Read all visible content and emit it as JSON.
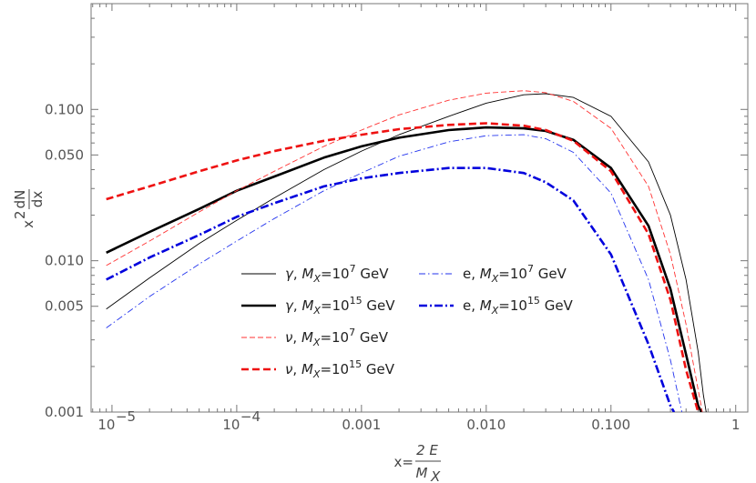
{
  "chart_data": {
    "type": "line",
    "xscale": "log",
    "yscale": "log",
    "xlim": [
      6.8e-06,
      1.25
    ],
    "ylim": [
      0.001,
      0.5
    ],
    "grid": false,
    "legend_position": "center",
    "xlabel": {
      "lhs": "x=",
      "num": "2 E",
      "den": "M",
      "den_sub": "X"
    },
    "ylabel": {
      "base": "x",
      "exp": "2",
      "num": "dN",
      "den": "dx"
    },
    "x_ticks": [
      {
        "value": 1e-05,
        "mant": "10",
        "exp": "−5"
      },
      {
        "value": 0.0001,
        "mant": "10",
        "exp": "−4"
      },
      {
        "value": 0.001,
        "text": "0.001"
      },
      {
        "value": 0.01,
        "text": "0.010"
      },
      {
        "value": 0.1,
        "text": "0.100"
      },
      {
        "value": 1,
        "text": "1"
      }
    ],
    "y_ticks": [
      {
        "value": 0.001,
        "text": "0.001"
      },
      {
        "value": 0.005,
        "text": "0.005"
      },
      {
        "value": 0.01,
        "text": "0.010"
      },
      {
        "value": 0.05,
        "text": "0.050"
      },
      {
        "value": 0.1,
        "text": "0.100"
      }
    ],
    "series": [
      {
        "name": "γ, M_X=10^7 GeV",
        "particle": "γ",
        "mass_exp": "7",
        "color": "#000000",
        "style": "solid",
        "weight": "thin",
        "x": [
          9e-06,
          2e-05,
          5e-05,
          0.0001,
          0.0002,
          0.0005,
          0.001,
          0.002,
          0.005,
          0.01,
          0.02,
          0.03,
          0.05,
          0.1,
          0.2,
          0.3,
          0.4,
          0.5,
          0.55,
          0.58
        ],
        "y": [
          0.0048,
          0.0077,
          0.013,
          0.0185,
          0.026,
          0.04,
          0.053,
          0.068,
          0.09,
          0.11,
          0.125,
          0.127,
          0.12,
          0.09,
          0.045,
          0.02,
          0.0075,
          0.0025,
          0.0013,
          0.001
        ]
      },
      {
        "name": "γ, M_X=10^15 GeV",
        "particle": "γ",
        "mass_exp": "15",
        "color": "#000000",
        "style": "solid",
        "weight": "thick",
        "x": [
          9e-06,
          2e-05,
          5e-05,
          0.0001,
          0.0002,
          0.0005,
          0.001,
          0.002,
          0.005,
          0.01,
          0.02,
          0.03,
          0.05,
          0.1,
          0.2,
          0.3,
          0.4,
          0.5,
          0.53
        ],
        "y": [
          0.0113,
          0.0155,
          0.022,
          0.029,
          0.036,
          0.048,
          0.057,
          0.065,
          0.073,
          0.076,
          0.075,
          0.072,
          0.063,
          0.041,
          0.017,
          0.0065,
          0.0024,
          0.0011,
          0.001
        ]
      },
      {
        "name": "ν, M_X=10^7 GeV",
        "particle": "ν",
        "mass_exp": "7",
        "color": "#ff3333",
        "style": "dashed",
        "weight": "thin",
        "x": [
          9e-06,
          2e-05,
          5e-05,
          0.0001,
          0.0002,
          0.0005,
          0.001,
          0.002,
          0.005,
          0.01,
          0.02,
          0.03,
          0.05,
          0.1,
          0.2,
          0.3,
          0.4,
          0.5,
          0.54
        ],
        "y": [
          0.0093,
          0.0135,
          0.021,
          0.029,
          0.039,
          0.057,
          0.073,
          0.092,
          0.115,
          0.128,
          0.133,
          0.129,
          0.113,
          0.075,
          0.031,
          0.011,
          0.0038,
          0.0014,
          0.001
        ]
      },
      {
        "name": "ν, M_X=10^15 GeV",
        "particle": "ν",
        "mass_exp": "15",
        "color": "#ee1111",
        "style": "dashed",
        "weight": "thick",
        "x": [
          9e-06,
          2e-05,
          5e-05,
          0.0001,
          0.0002,
          0.0005,
          0.001,
          0.002,
          0.005,
          0.01,
          0.02,
          0.03,
          0.05,
          0.1,
          0.2,
          0.3,
          0.4,
          0.5
        ],
        "y": [
          0.0255,
          0.031,
          0.039,
          0.046,
          0.053,
          0.062,
          0.068,
          0.074,
          0.079,
          0.081,
          0.078,
          0.073,
          0.062,
          0.039,
          0.015,
          0.0055,
          0.0019,
          0.001
        ]
      },
      {
        "name": "e, M_X=10^7 GeV",
        "particle": "e",
        "mass_exp": "7",
        "color": "#2233ee",
        "style": "dashdot",
        "weight": "thin",
        "x": [
          9e-06,
          2e-05,
          5e-05,
          0.0001,
          0.0002,
          0.0005,
          0.001,
          0.002,
          0.005,
          0.01,
          0.02,
          0.03,
          0.05,
          0.1,
          0.2,
          0.3,
          0.37
        ],
        "y": [
          0.0036,
          0.0058,
          0.0095,
          0.0135,
          0.019,
          0.029,
          0.038,
          0.049,
          0.061,
          0.067,
          0.068,
          0.064,
          0.052,
          0.028,
          0.0075,
          0.0022,
          0.001
        ]
      },
      {
        "name": "e, M_X=10^15 GeV",
        "particle": "e",
        "mass_exp": "15",
        "color": "#0000dd",
        "style": "dashdot",
        "weight": "thick",
        "x": [
          9e-06,
          2e-05,
          5e-05,
          0.0001,
          0.0002,
          0.0005,
          0.001,
          0.002,
          0.005,
          0.01,
          0.02,
          0.03,
          0.05,
          0.1,
          0.2,
          0.3,
          0.32
        ],
        "y": [
          0.0075,
          0.0105,
          0.0148,
          0.0195,
          0.024,
          0.031,
          0.035,
          0.038,
          0.041,
          0.041,
          0.038,
          0.033,
          0.025,
          0.011,
          0.0028,
          0.0011,
          0.001
        ]
      }
    ]
  }
}
